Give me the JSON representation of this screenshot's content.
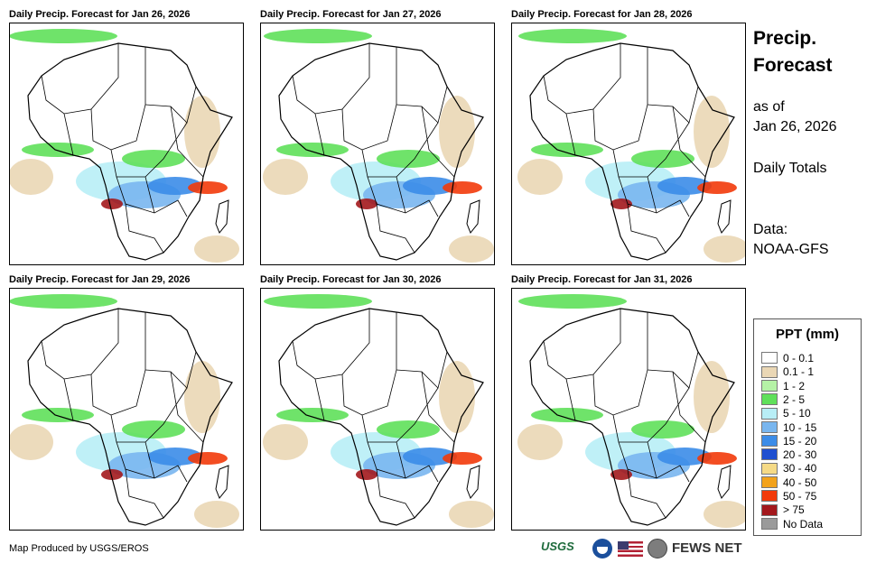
{
  "panels": [
    {
      "title": "Daily Precip. Forecast for Jan 26, 2026"
    },
    {
      "title": "Daily Precip. Forecast for Jan 27, 2026"
    },
    {
      "title": "Daily Precip. Forecast for Jan 28, 2026"
    },
    {
      "title": "Daily Precip. Forecast for Jan 29, 2026"
    },
    {
      "title": "Daily Precip. Forecast for Jan 30, 2026"
    },
    {
      "title": "Daily Precip. Forecast for Jan 31, 2026"
    }
  ],
  "side": {
    "title_line1": "Precip.",
    "title_line2": "Forecast",
    "asof_line1": "as of",
    "asof_line2": "Jan 26, 2026",
    "totals": "Daily Totals",
    "data_line1": "Data:",
    "data_line2": "NOAA-GFS"
  },
  "legend": {
    "title": "PPT (mm)",
    "items": [
      {
        "label": "0 - 0.1",
        "color": "#ffffff"
      },
      {
        "label": "0.1 - 1",
        "color": "#ead7b5"
      },
      {
        "label": "1 - 2",
        "color": "#b5f2a6"
      },
      {
        "label": "2 - 5",
        "color": "#5fe05a"
      },
      {
        "label": "5 - 10",
        "color": "#b8eef6"
      },
      {
        "label": "10 - 15",
        "color": "#79b6ef"
      },
      {
        "label": "15 - 20",
        "color": "#3b8ce8"
      },
      {
        "label": "20 - 30",
        "color": "#1f4fd0"
      },
      {
        "label": "30 - 40",
        "color": "#f5da86"
      },
      {
        "label": "40 - 50",
        "color": "#f2a21b"
      },
      {
        "label": "50 - 75",
        "color": "#f23a0a"
      },
      {
        "label": "> 75",
        "color": "#a3181c"
      },
      {
        "label": "No Data",
        "color": "#9a9a9a"
      }
    ]
  },
  "footer": {
    "credit": "Map Produced by USGS/EROS",
    "usgs_logo": "USGS",
    "fews_logo": "FEWS NET"
  }
}
